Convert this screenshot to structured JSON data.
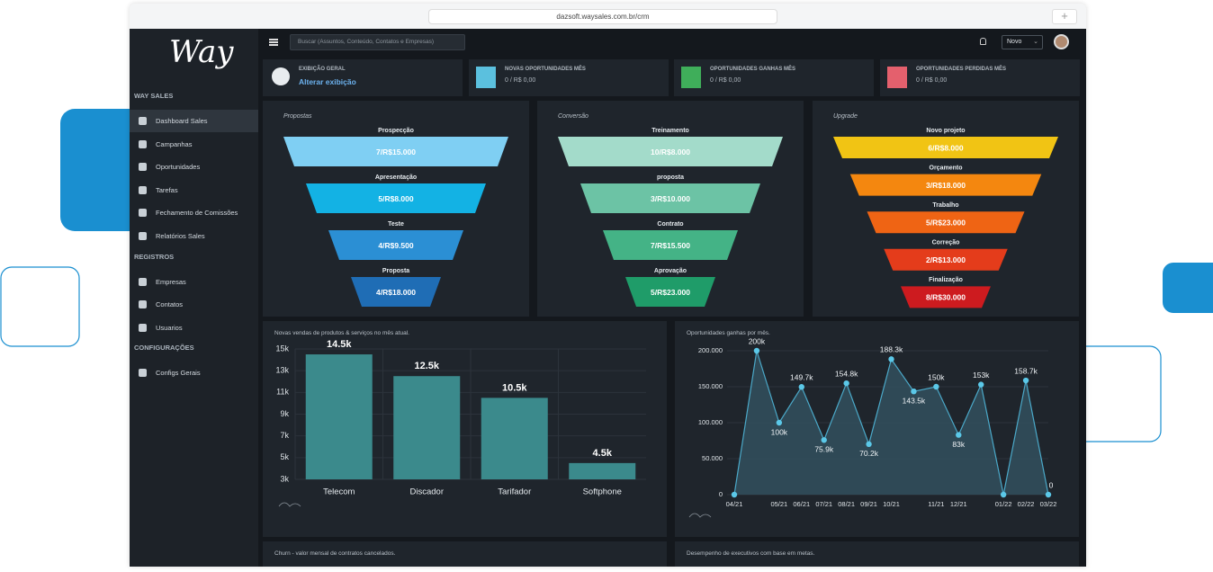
{
  "browser": {
    "url": "dazsoft.waysales.com.br/crm"
  },
  "sidebar": {
    "logo": "Way",
    "sections": [
      {
        "title": "WAY SALES",
        "items": [
          "Dashboard Sales",
          "Campanhas",
          "Oportunidades",
          "Tarefas",
          "Fechamento de Comissões",
          "Relatórios Sales"
        ]
      },
      {
        "title": "REGISTROS",
        "items": [
          "Empresas",
          "Contatos",
          "Usuarios"
        ]
      },
      {
        "title": "CONFIGURAÇÕES",
        "items": [
          "Configs Gerais"
        ]
      }
    ]
  },
  "topbar": {
    "search_placeholder": "Buscar (Assuntos, Conteúdo, Contatos e Empresas)",
    "new_button": "Novo"
  },
  "cards": [
    {
      "label": "EXIBIÇÃO GERAL",
      "value": "Alterar exibição"
    },
    {
      "label": "NOVAS OPORTUNIDADES MÊS",
      "value": "0 / R$ 0,00",
      "color": "#5bc0de"
    },
    {
      "label": "OPORTUNIDADES GANHAS MÊS",
      "value": "0 / R$ 0,00",
      "color": "#3fae5a"
    },
    {
      "label": "OPORTUNIDADES PERDIDAS MÊS",
      "value": "0 / R$ 0,00",
      "color": "#e4606d"
    }
  ],
  "funnels": [
    {
      "title": "Propostas",
      "stages": [
        {
          "label": "Prospecção",
          "value": "7/R$15.000",
          "color": "#7fcff3"
        },
        {
          "label": "Apresentação",
          "value": "5/R$8.000",
          "color": "#13b2e4"
        },
        {
          "label": "Teste",
          "value": "4/R$9.500",
          "color": "#2b8fd4"
        },
        {
          "label": "Proposta",
          "value": "4/R$18.000",
          "color": "#1f6db5"
        }
      ]
    },
    {
      "title": "Conversão",
      "stages": [
        {
          "label": "Treinamento",
          "value": "10/R$8.000",
          "color": "#a3dbca"
        },
        {
          "label": "proposta",
          "value": "3/R$10.000",
          "color": "#6cc3a5"
        },
        {
          "label": "Contrato",
          "value": "7/R$15.500",
          "color": "#44b386"
        },
        {
          "label": "Aprovação",
          "value": "5/R$23.000",
          "color": "#1f9c69"
        }
      ]
    },
    {
      "title": "Upgrade",
      "stages": [
        {
          "label": "Novo projeto",
          "value": "6/R$8.000",
          "color": "#f1c414"
        },
        {
          "label": "Orçamento",
          "value": "3/R$18.000",
          "color": "#f4870f"
        },
        {
          "label": "Trabalho",
          "value": "5/R$23.000",
          "color": "#ef6414"
        },
        {
          "label": "Correção",
          "value": "2/R$13.000",
          "color": "#e43c1b"
        },
        {
          "label": "Finalização",
          "value": "8/R$30.000",
          "color": "#cd1b1f"
        }
      ]
    }
  ],
  "bar_chart": {
    "type": "bar",
    "title": "Novas vendas de produtos & serviços no mês atual.",
    "categories": [
      "Telecom",
      "Discador",
      "Tarifador",
      "Softphone"
    ],
    "values": [
      14500,
      12500,
      10500,
      4500
    ],
    "value_labels": [
      "14.5k",
      "12.5k",
      "10.5k",
      "4.5k"
    ],
    "color": "#3b8a8c",
    "ylim": [
      3000,
      15000
    ],
    "yticks": [
      {
        "value": 3000,
        "label": "3k"
      },
      {
        "value": 5000,
        "label": "5k"
      },
      {
        "value": 7000,
        "label": "7k"
      },
      {
        "value": 9000,
        "label": "9k"
      },
      {
        "value": 11000,
        "label": "11k"
      },
      {
        "value": 13000,
        "label": "13k"
      },
      {
        "value": 15000,
        "label": "15k"
      }
    ],
    "grid": true
  },
  "line_chart": {
    "type": "area",
    "title": "Oportunidades ganhas por mês.",
    "categories": [
      "04/21",
      null,
      "05/21",
      "06/21",
      "07/21",
      "08/21",
      "09/21",
      "10/21",
      null,
      "11/21",
      "12/21",
      null,
      "01/22",
      "02/22",
      "03/22"
    ],
    "values": [
      0,
      200000,
      100000,
      149700,
      75900,
      154800,
      70200,
      188300,
      143500,
      150000,
      83000,
      153000,
      0,
      158700,
      0
    ],
    "value_labels": [
      null,
      "200k",
      "100k",
      "149.7k",
      "75.9k",
      "154.8k",
      "70.2k",
      "188.3k",
      "143.5k",
      "150k",
      "83k",
      "153k",
      null,
      "158.7k",
      "0"
    ],
    "color": "#5bc8e8",
    "ylim": [
      0,
      200000
    ],
    "yticks": [
      0,
      {
        "value": 50000,
        "label": "50.000"
      },
      {
        "value": 100000,
        "label": "100.000"
      },
      {
        "value": 150000,
        "label": "150.000"
      },
      {
        "value": 200000,
        "label": "200.000"
      }
    ],
    "grid": true
  },
  "bottom_panels": [
    "Churn - valor mensal de contratos cancelados.",
    "Desempenho de executivos com base em metas."
  ]
}
